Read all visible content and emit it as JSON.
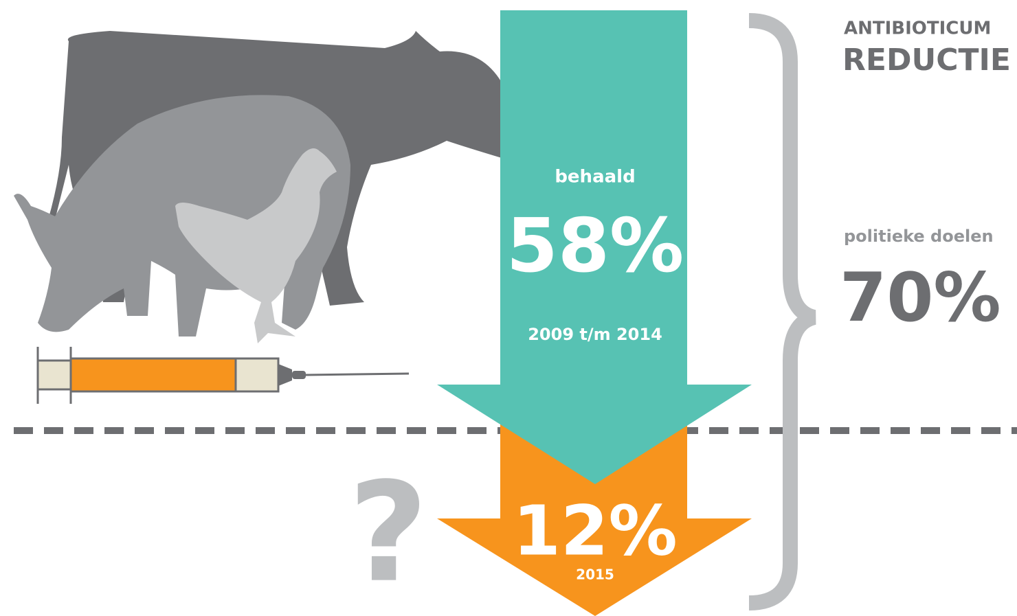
{
  "header": {
    "title_line1": "ANTIBIOTICUM",
    "title_line2": "REDUCTIE"
  },
  "achieved": {
    "label": "behaald",
    "value": "58%",
    "period": "2009 t/m 2014"
  },
  "current": {
    "value": "12%",
    "period": "2015",
    "question": "?"
  },
  "target": {
    "label": "politieke doelen",
    "value": "70%"
  }
}
